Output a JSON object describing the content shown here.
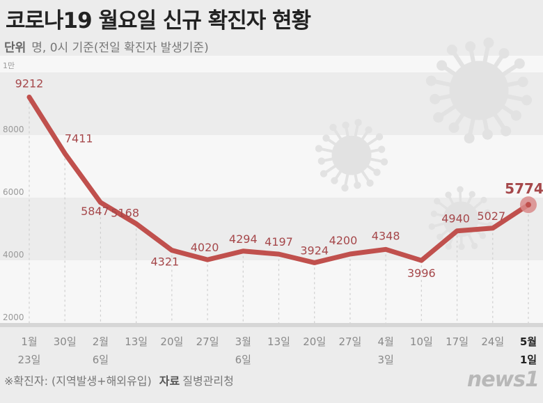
{
  "header": {
    "title": "코로나19 월요일 신규 확진자 현황",
    "unit_label": "단위",
    "unit_text": "명, 0시 기준(전일 확진자 발생기준)"
  },
  "footer": {
    "note": "※확진자: (지역발생+해외유입)",
    "source_label": "자료",
    "source": "질병관리청",
    "logo": "news1"
  },
  "colors": {
    "line": "#c0504d",
    "label": "#a5474a",
    "band": "#ececec",
    "bg": "#f7f7f7"
  },
  "chart_data": {
    "type": "line",
    "title": "코로나19 월요일 신규 확진자 현황",
    "xlabel": "",
    "ylabel": "명",
    "ylim": [
      2000,
      10000
    ],
    "y_ticks": [
      {
        "value": 10000,
        "label": "1만"
      },
      {
        "value": 8000,
        "label": "8000"
      },
      {
        "value": 6000,
        "label": "6000"
      },
      {
        "value": 4000,
        "label": "4000"
      },
      {
        "value": 2000,
        "label": "2000"
      }
    ],
    "categories": [
      {
        "line1": "1월",
        "line2": "23일"
      },
      {
        "line1": "30일",
        "line2": ""
      },
      {
        "line1": "2월",
        "line2": "6일"
      },
      {
        "line1": "13일",
        "line2": ""
      },
      {
        "line1": "20일",
        "line2": ""
      },
      {
        "line1": "27일",
        "line2": ""
      },
      {
        "line1": "3월",
        "line2": "6일"
      },
      {
        "line1": "13일",
        "line2": ""
      },
      {
        "line1": "20일",
        "line2": ""
      },
      {
        "line1": "27일",
        "line2": ""
      },
      {
        "line1": "4월",
        "line2": "3일"
      },
      {
        "line1": "10일",
        "line2": ""
      },
      {
        "line1": "17일",
        "line2": ""
      },
      {
        "line1": "24일",
        "line2": ""
      },
      {
        "line1": "5월",
        "line2": "1일"
      }
    ],
    "series": [
      {
        "name": "신규 확진자",
        "values": [
          9212,
          7411,
          5847,
          5168,
          4321,
          4020,
          4294,
          4197,
          3924,
          4200,
          4348,
          3996,
          4940,
          5027,
          5774
        ],
        "labels": [
          "9212",
          "7411",
          "5847",
          "5168",
          "4321",
          "4020",
          "4294",
          "4197",
          "3924",
          "4200",
          "4348",
          "3996",
          "4940",
          "5027",
          "5774"
        ]
      }
    ],
    "highlight_index": 14,
    "grid": true
  }
}
